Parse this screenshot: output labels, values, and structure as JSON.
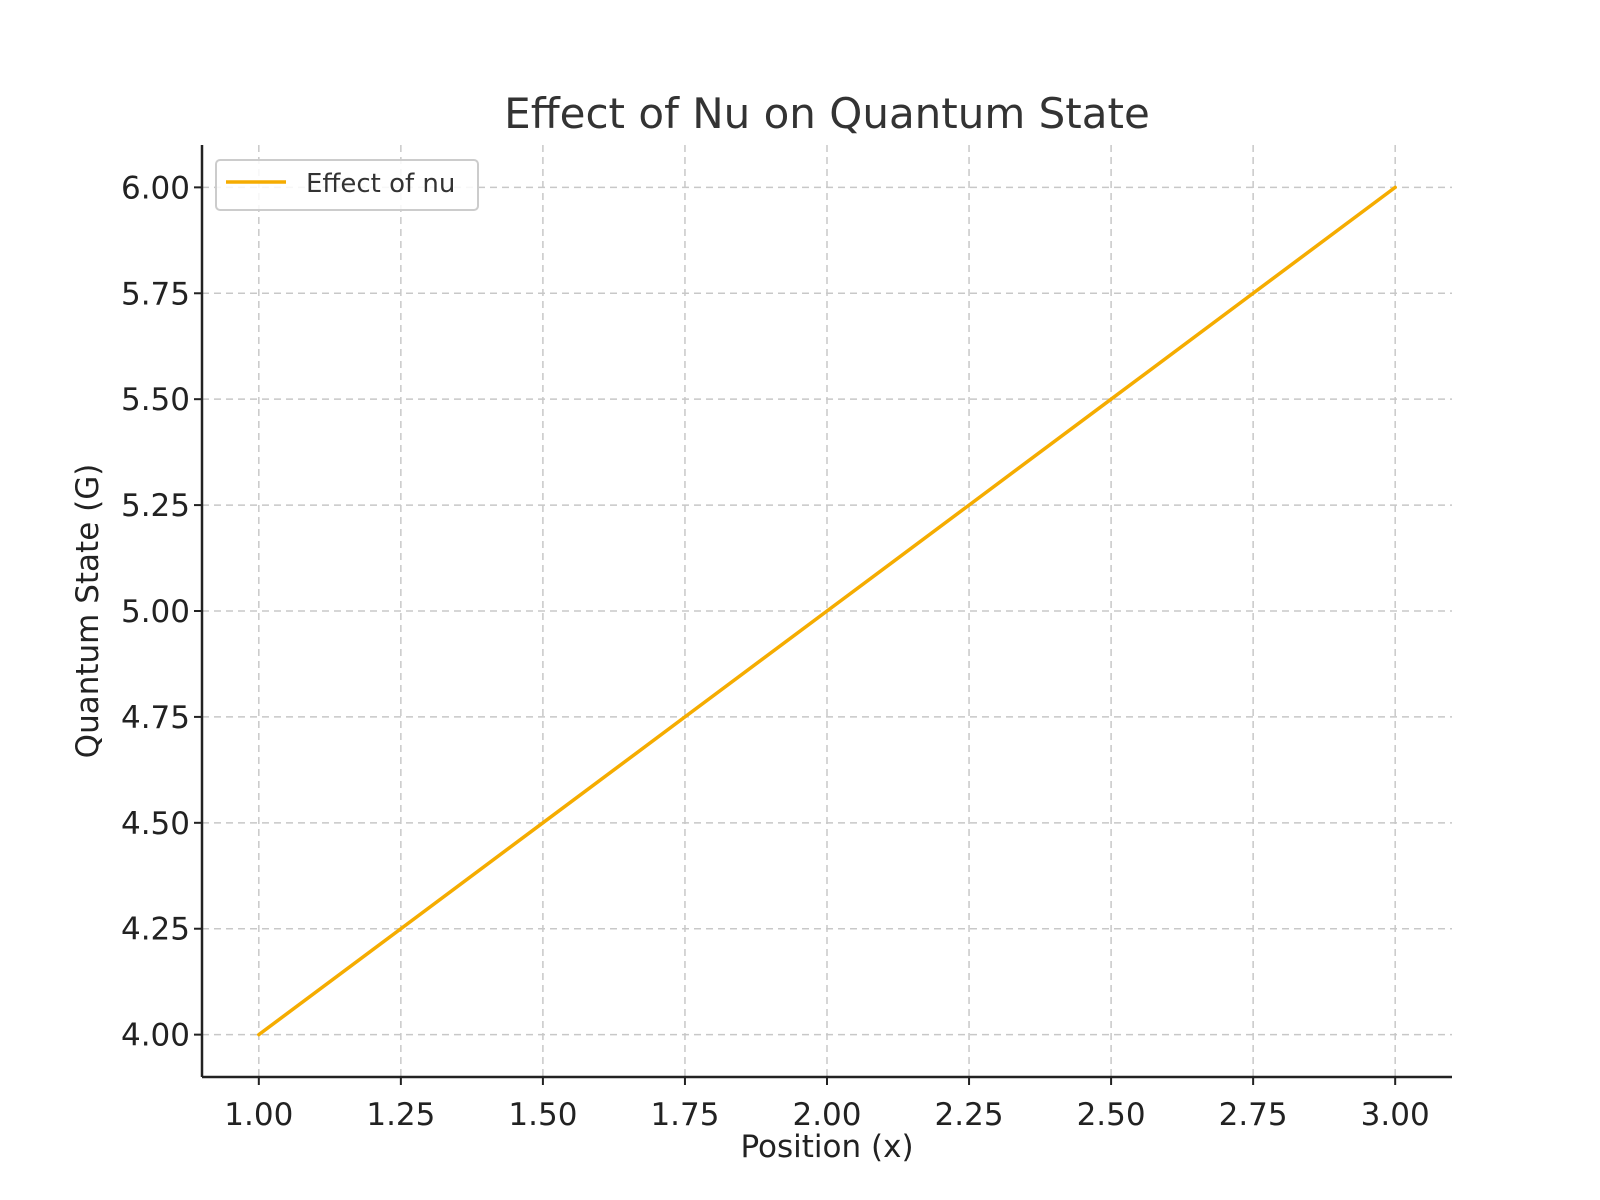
{
  "chart_data": {
    "type": "line",
    "title": "Effect of Nu on Quantum State",
    "xlabel": "Position (x)",
    "ylabel": "Quantum State (G)",
    "xlim": [
      0.9,
      3.1
    ],
    "ylim": [
      3.9,
      6.1
    ],
    "xticks": [
      "1.00",
      "1.25",
      "1.50",
      "1.75",
      "2.00",
      "2.25",
      "2.50",
      "2.75",
      "3.00"
    ],
    "yticks": [
      "4.00",
      "4.25",
      "4.50",
      "4.75",
      "5.00",
      "5.25",
      "5.50",
      "5.75",
      "6.00"
    ],
    "grid": true,
    "legend_position": "top-left",
    "series": [
      {
        "name": "Effect of nu",
        "color": "#f5ac00",
        "x": [
          1.0,
          1.25,
          1.5,
          1.75,
          2.0,
          2.25,
          2.5,
          2.75,
          3.0
        ],
        "y": [
          4.0,
          4.25,
          4.5,
          4.75,
          5.0,
          5.25,
          5.5,
          5.75,
          6.0
        ]
      }
    ]
  }
}
